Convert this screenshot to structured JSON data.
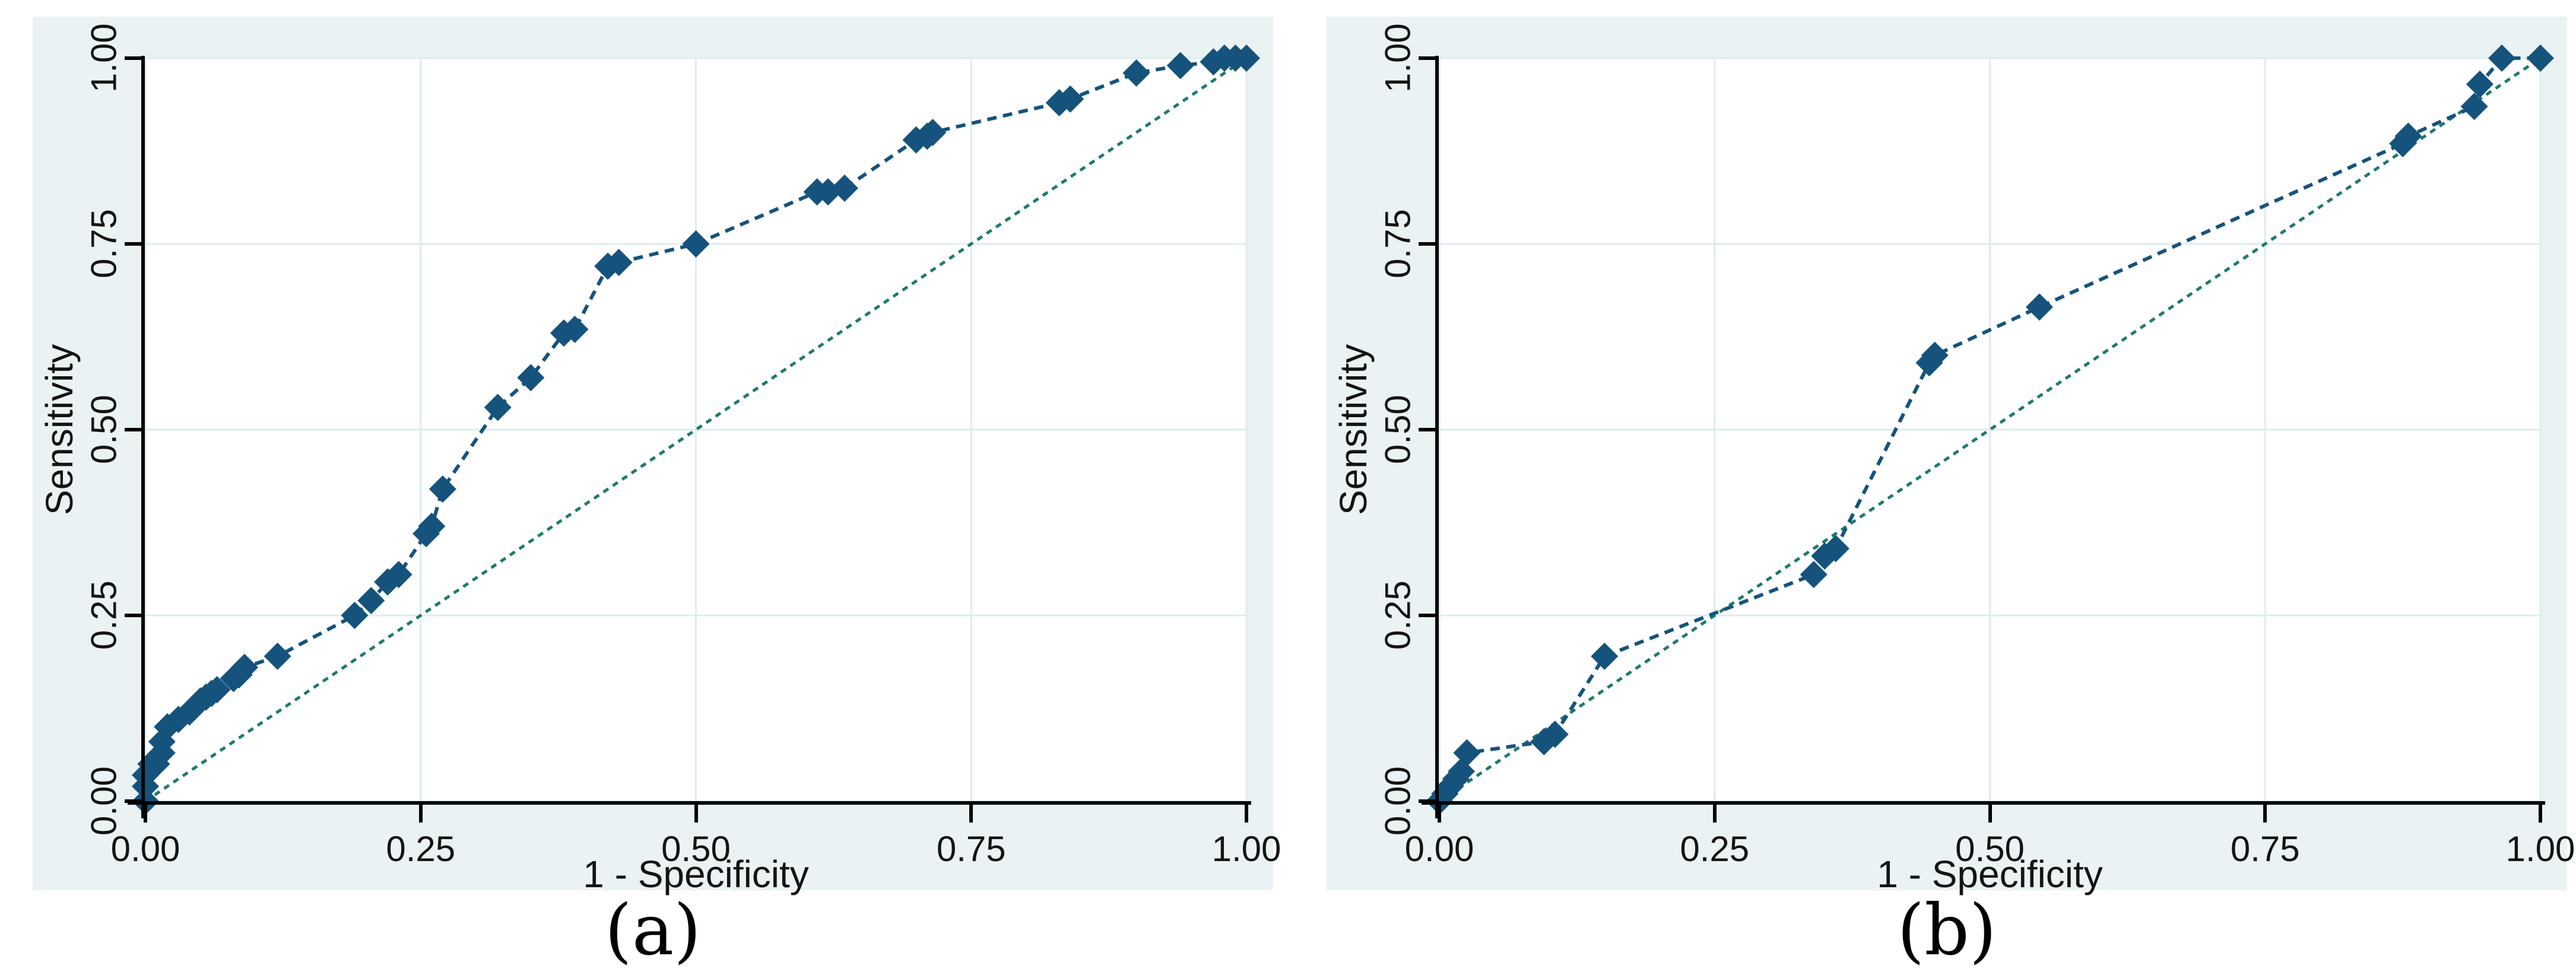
{
  "figure": {
    "captions": {
      "a": "(a)",
      "b": "(b)"
    },
    "colors": {
      "panel_background": "#eaf2f3",
      "plot_background": "#ffffff",
      "gridline": "#ddecf1",
      "axis": "#000000",
      "tick_label": "#141414",
      "roc_curve": "#15537d",
      "reference_line": "#1f7a6e"
    }
  },
  "chart_data": [
    {
      "type": "line",
      "panel": "a",
      "xlabel": "1 - Specificity",
      "ylabel": "Sensitivity",
      "xlim": [
        0,
        1
      ],
      "ylim": [
        0,
        1
      ],
      "grid": true,
      "xticks": {
        "values": [
          0,
          0.25,
          0.5,
          0.75,
          1.0
        ],
        "labels": [
          "0.00",
          "0.25",
          "0.50",
          "0.75",
          "1.00"
        ]
      },
      "yticks": {
        "values": [
          0,
          0.25,
          0.5,
          0.75,
          1.0
        ],
        "labels": [
          "0.00",
          "0.25",
          "0.50",
          "0.75",
          "1.00"
        ]
      },
      "series": [
        {
          "name": "roc-curve",
          "marker": "diamond",
          "points": [
            [
              0.0,
              0.0
            ],
            [
              0.0,
              0.02
            ],
            [
              0.0,
              0.035
            ],
            [
              0.005,
              0.05
            ],
            [
              0.01,
              0.05
            ],
            [
              0.015,
              0.065
            ],
            [
              0.015,
              0.08
            ],
            [
              0.02,
              0.1
            ],
            [
              0.03,
              0.11
            ],
            [
              0.04,
              0.12
            ],
            [
              0.05,
              0.135
            ],
            [
              0.055,
              0.14
            ],
            [
              0.06,
              0.145
            ],
            [
              0.065,
              0.15
            ],
            [
              0.08,
              0.165
            ],
            [
              0.085,
              0.17
            ],
            [
              0.09,
              0.18
            ],
            [
              0.12,
              0.195
            ],
            [
              0.19,
              0.25
            ],
            [
              0.205,
              0.27
            ],
            [
              0.22,
              0.295
            ],
            [
              0.23,
              0.305
            ],
            [
              0.255,
              0.36
            ],
            [
              0.26,
              0.37
            ],
            [
              0.27,
              0.42
            ],
            [
              0.32,
              0.53
            ],
            [
              0.35,
              0.57
            ],
            [
              0.38,
              0.63
            ],
            [
              0.39,
              0.635
            ],
            [
              0.42,
              0.72
            ],
            [
              0.43,
              0.725
            ],
            [
              0.5,
              0.75
            ],
            [
              0.61,
              0.82
            ],
            [
              0.62,
              0.82
            ],
            [
              0.635,
              0.825
            ],
            [
              0.7,
              0.89
            ],
            [
              0.71,
              0.895
            ],
            [
              0.715,
              0.9
            ],
            [
              0.83,
              0.94
            ],
            [
              0.84,
              0.945
            ],
            [
              0.9,
              0.98
            ],
            [
              0.94,
              0.99
            ],
            [
              0.97,
              0.995
            ],
            [
              0.98,
              1.0
            ],
            [
              0.99,
              1.0
            ],
            [
              1.0,
              1.0
            ]
          ]
        },
        {
          "name": "reference-diagonal",
          "marker": "none",
          "points": [
            [
              0,
              0
            ],
            [
              1,
              1
            ]
          ]
        }
      ]
    },
    {
      "type": "line",
      "panel": "b",
      "xlabel": "1 - Specificity",
      "ylabel": "Sensitivity",
      "xlim": [
        0,
        1
      ],
      "ylim": [
        0,
        1
      ],
      "grid": true,
      "xticks": {
        "values": [
          0,
          0.25,
          0.5,
          0.75,
          1.0
        ],
        "labels": [
          "0.00",
          "0.25",
          "0.50",
          "0.75",
          "1.00"
        ]
      },
      "yticks": {
        "values": [
          0,
          0.25,
          0.5,
          0.75,
          1.0
        ],
        "labels": [
          "0.00",
          "0.25",
          "0.50",
          "0.75",
          "1.00"
        ]
      },
      "series": [
        {
          "name": "roc-curve",
          "marker": "diamond",
          "points": [
            [
              0.0,
              0.0
            ],
            [
              0.005,
              0.01
            ],
            [
              0.01,
              0.02
            ],
            [
              0.015,
              0.03
            ],
            [
              0.02,
              0.04
            ],
            [
              0.025,
              0.065
            ],
            [
              0.095,
              0.08
            ],
            [
              0.105,
              0.09
            ],
            [
              0.15,
              0.195
            ],
            [
              0.34,
              0.305
            ],
            [
              0.35,
              0.33
            ],
            [
              0.36,
              0.34
            ],
            [
              0.445,
              0.59
            ],
            [
              0.45,
              0.6
            ],
            [
              0.545,
              0.665
            ],
            [
              0.875,
              0.885
            ],
            [
              0.88,
              0.895
            ],
            [
              0.94,
              0.935
            ],
            [
              0.945,
              0.965
            ],
            [
              0.965,
              1.0
            ],
            [
              1.0,
              1.0
            ]
          ]
        },
        {
          "name": "reference-diagonal",
          "marker": "none",
          "points": [
            [
              0,
              0
            ],
            [
              1,
              1
            ]
          ]
        }
      ]
    }
  ]
}
